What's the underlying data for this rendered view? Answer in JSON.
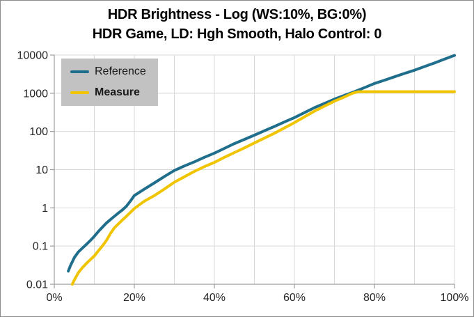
{
  "title": {
    "line1": "HDR Brightness - Log (WS:10%, BG:0%)",
    "line2": "HDR Game, LD: Hgh Smooth, Halo Control: 0"
  },
  "legend": {
    "background": "#c2c2c2",
    "items": [
      {
        "label": "Reference",
        "color": "#1f6e8c",
        "bold": false
      },
      {
        "label": "Measure",
        "color": "#f0c500",
        "bold": true
      }
    ]
  },
  "colors": {
    "gridline": "#d9d9d9",
    "axis": "#9c9c9c",
    "tick_text": "#262626",
    "canvas_border": "#8c8c8c"
  },
  "chart_data": {
    "type": "line",
    "title": "HDR Brightness - Log (WS:10%, BG:0%)",
    "subtitle": "HDR Game, LD: Hgh Smooth, Halo Control: 0",
    "x_unit": "percent_signal",
    "y_unit": "nits",
    "y_scale": "log",
    "xlim": [
      0,
      100
    ],
    "ylim": [
      0.01,
      10000
    ],
    "grid": {
      "x_step_pct": 10,
      "y_per_decade": true
    },
    "legend_position": "top-left",
    "x_ticks": [
      {
        "label": "0%",
        "value": 0
      },
      {
        "label": "20%",
        "value": 20
      },
      {
        "label": "40%",
        "value": 40
      },
      {
        "label": "60%",
        "value": 60
      },
      {
        "label": "80%",
        "value": 80
      },
      {
        "label": "100%",
        "value": 100
      }
    ],
    "y_ticks": [
      {
        "label": "10000",
        "value": 10000
      },
      {
        "label": "1000",
        "value": 1000
      },
      {
        "label": "100",
        "value": 100
      },
      {
        "label": "10",
        "value": 10
      },
      {
        "label": "1",
        "value": 1
      },
      {
        "label": "0.1",
        "value": 0.1
      },
      {
        "label": "0.01",
        "value": 0.01
      }
    ],
    "series": [
      {
        "name": "Reference",
        "color": "#1f6e8c",
        "width": 4,
        "points": [
          [
            3.5,
            0.022
          ],
          [
            4,
            0.03
          ],
          [
            5,
            0.05
          ],
          [
            6,
            0.07
          ],
          [
            7,
            0.088
          ],
          [
            8,
            0.11
          ],
          [
            9,
            0.14
          ],
          [
            10,
            0.18
          ],
          [
            11,
            0.24
          ],
          [
            12,
            0.31
          ],
          [
            13,
            0.4
          ],
          [
            14,
            0.49
          ],
          [
            15,
            0.6
          ],
          [
            16,
            0.73
          ],
          [
            17,
            0.88
          ],
          [
            18,
            1.1
          ],
          [
            19,
            1.5
          ],
          [
            20,
            2.1
          ],
          [
            22.5,
            3.1
          ],
          [
            25,
            4.5
          ],
          [
            27.5,
            6.6
          ],
          [
            30,
            9.5
          ],
          [
            32.5,
            12.5
          ],
          [
            35,
            16
          ],
          [
            37.5,
            21
          ],
          [
            40,
            27
          ],
          [
            42.5,
            36
          ],
          [
            45,
            48
          ],
          [
            47.5,
            62
          ],
          [
            50,
            80
          ],
          [
            52.5,
            104
          ],
          [
            55,
            135
          ],
          [
            57.5,
            177
          ],
          [
            60,
            230
          ],
          [
            62.5,
            310
          ],
          [
            65,
            420
          ],
          [
            67.5,
            540
          ],
          [
            70,
            700
          ],
          [
            72.5,
            880
          ],
          [
            75,
            1100
          ],
          [
            77.5,
            1400
          ],
          [
            80,
            1800
          ],
          [
            82.5,
            2200
          ],
          [
            85,
            2700
          ],
          [
            87.5,
            3300
          ],
          [
            90,
            4000
          ],
          [
            92.5,
            5000
          ],
          [
            95,
            6200
          ],
          [
            97.5,
            7800
          ],
          [
            100,
            9800
          ]
        ]
      },
      {
        "name": "Measure",
        "color": "#f0c500",
        "width": 4,
        "points": [
          [
            4.5,
            0.01
          ],
          [
            5,
            0.013
          ],
          [
            6,
            0.02
          ],
          [
            7,
            0.027
          ],
          [
            8,
            0.035
          ],
          [
            9,
            0.044
          ],
          [
            10,
            0.055
          ],
          [
            11,
            0.075
          ],
          [
            12,
            0.1
          ],
          [
            13,
            0.14
          ],
          [
            14,
            0.21
          ],
          [
            15,
            0.3
          ],
          [
            16,
            0.38
          ],
          [
            17,
            0.48
          ],
          [
            18,
            0.6
          ],
          [
            19,
            0.76
          ],
          [
            20,
            0.96
          ],
          [
            22.5,
            1.5
          ],
          [
            25,
            2.1
          ],
          [
            27.5,
            3.1
          ],
          [
            30,
            4.7
          ],
          [
            32.5,
            6.5
          ],
          [
            35,
            9
          ],
          [
            37.5,
            12
          ],
          [
            40,
            15.5
          ],
          [
            42.5,
            21
          ],
          [
            45,
            28
          ],
          [
            47.5,
            37
          ],
          [
            50,
            50
          ],
          [
            52.5,
            67
          ],
          [
            55,
            90
          ],
          [
            57.5,
            123
          ],
          [
            60,
            170
          ],
          [
            62.5,
            240
          ],
          [
            65,
            340
          ],
          [
            67.5,
            460
          ],
          [
            70,
            620
          ],
          [
            72.5,
            800
          ],
          [
            74.5,
            1000
          ],
          [
            76,
            1100
          ],
          [
            80,
            1100
          ],
          [
            85,
            1100
          ],
          [
            90,
            1100
          ],
          [
            95,
            1100
          ],
          [
            100,
            1100
          ]
        ]
      }
    ]
  }
}
